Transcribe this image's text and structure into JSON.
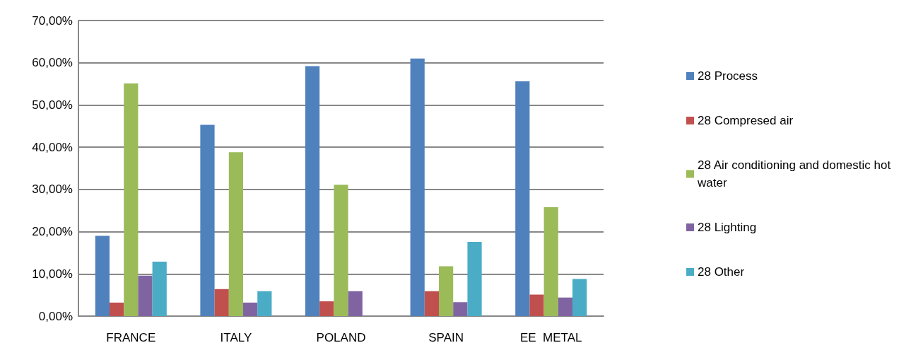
{
  "chart_data": {
    "type": "bar",
    "categories": [
      "FRANCE",
      "ITALY",
      "POLAND",
      "SPAIN",
      "EE  METAL"
    ],
    "series": [
      {
        "name": "28 Process",
        "color": "#4f81bd",
        "values": [
          19.0,
          45.3,
          59.2,
          61.0,
          55.6
        ]
      },
      {
        "name": "28 Compresed air",
        "color": "#c0504d",
        "values": [
          3.2,
          6.4,
          3.5,
          5.9,
          5.1
        ]
      },
      {
        "name": "28 Air conditioning and domestic hot water",
        "color": "#9bbb59",
        "values": [
          55.1,
          38.8,
          31.1,
          11.8,
          25.8
        ]
      },
      {
        "name": "28 Lighting",
        "color": "#8064a2",
        "values": [
          9.6,
          3.2,
          5.9,
          3.3,
          4.4
        ]
      },
      {
        "name": "28 Other",
        "color": "#4bacc6",
        "values": [
          12.9,
          5.9,
          null,
          17.6,
          8.8
        ]
      }
    ],
    "ylim": [
      0,
      70
    ],
    "yticks": [
      {
        "value": 0,
        "label": "0,00%"
      },
      {
        "value": 10,
        "label": "10,00%"
      },
      {
        "value": 20,
        "label": "20,00%"
      },
      {
        "value": 30,
        "label": "30,00%"
      },
      {
        "value": 40,
        "label": "40,00%"
      },
      {
        "value": 50,
        "label": "50,00%"
      },
      {
        "value": 60,
        "label": "60,00%"
      },
      {
        "value": 70,
        "label": "70,00%"
      }
    ],
    "grid": "y",
    "legend": "right"
  }
}
